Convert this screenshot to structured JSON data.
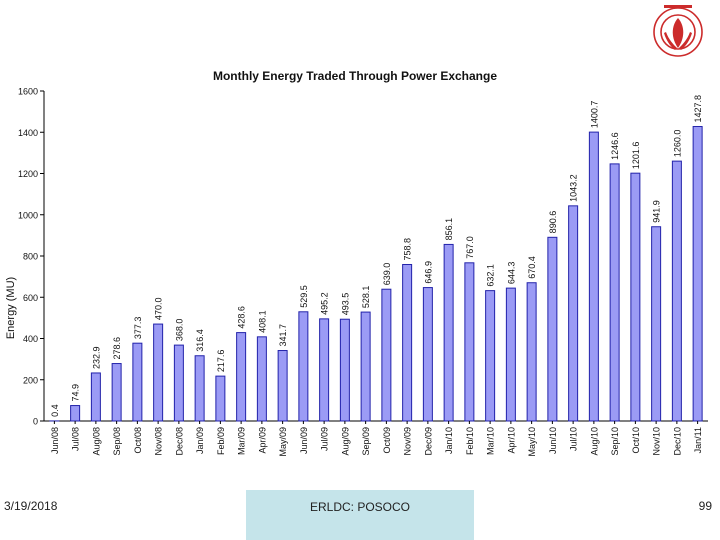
{
  "footer": {
    "date": "3/19/2018",
    "center": "ERLDC: POSOCO",
    "page": "99"
  },
  "colors": {
    "bar_fill": "#9b9bf5",
    "bar_stroke": "#2222aa",
    "logo": "#cc2b2b"
  },
  "logo": {
    "icon": "organization-emblem-icon"
  },
  "chart_data": {
    "type": "bar",
    "title": "Monthly Energy Traded Through Power Exchange",
    "xlabel": "",
    "ylabel": "Energy (MU)",
    "ylim": [
      0,
      1600
    ],
    "yticks": [
      0,
      200,
      400,
      600,
      800,
      1000,
      1200,
      1400,
      1600
    ],
    "grid": false,
    "legend": "none",
    "categories": [
      "Jun/08",
      "Jul/08",
      "Aug/08",
      "Sep/08",
      "Oct/08",
      "Nov/08",
      "Dec/08",
      "Jan/09",
      "Feb/09",
      "Mar/09",
      "Apr/09",
      "May/09",
      "Jun/09",
      "Jul/09",
      "Aug/09",
      "Sep/09",
      "Oct/09",
      "Nov/09",
      "Dec/09",
      "Jan/10",
      "Feb/10",
      "Mar/10",
      "Apr/10",
      "May/10",
      "Jun/10",
      "Jul/10",
      "Aug/10",
      "Sep/10",
      "Oct/10",
      "Nov/10",
      "Dec/10",
      "Jan/11"
    ],
    "values": [
      0.4,
      74.9,
      232.9,
      278.6,
      377.3,
      470.0,
      368.0,
      316.4,
      217.6,
      428.6,
      408.1,
      341.7,
      529.5,
      495.2,
      493.5,
      528.1,
      639.0,
      758.8,
      646.9,
      856.1,
      767.0,
      632.1,
      644.3,
      670.4,
      890.6,
      1043.2,
      1400.7,
      1246.6,
      1201.6,
      941.9,
      1260.0,
      1427.8
    ],
    "labels": [
      "0.4",
      "74.9",
      "232.9",
      "278.6",
      "377.3",
      "470.0",
      "368.0",
      "316.4",
      "217.6",
      "428.6",
      "408.1",
      "341.7",
      "529.5",
      "495.2",
      "493.5",
      "528.1",
      "639.0",
      "758.8",
      "646.9",
      "856.1",
      "767.0",
      "632.1",
      "644.3",
      "670.4",
      "890.6",
      "1043.2",
      "1400.7",
      "1246.6",
      "1201.6",
      "941.9",
      "1260.0",
      "1427.8"
    ]
  }
}
